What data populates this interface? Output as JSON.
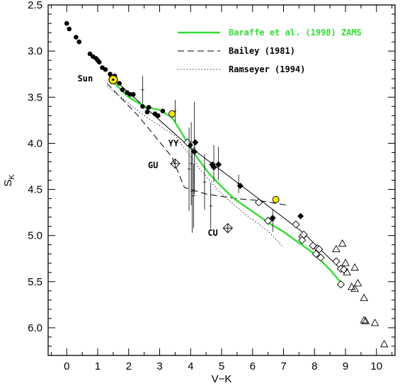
{
  "chart_data": {
    "type": "scatter",
    "xlabel": "V−K",
    "ylabel": "S",
    "ylabel_sub": "K",
    "xlim": [
      -0.6,
      10.6
    ],
    "ylim": [
      6.3,
      2.5
    ],
    "y_inverted": true,
    "x_ticks": [
      0,
      1,
      2,
      3,
      4,
      5,
      6,
      7,
      8,
      9,
      10
    ],
    "x_tick_labels": [
      "0",
      "1",
      "2",
      "3",
      "4",
      "5",
      "6",
      "7",
      "8",
      "9",
      "10"
    ],
    "y_ticks": [
      2.5,
      3.0,
      3.5,
      4.0,
      4.5,
      5.0,
      5.5,
      6.0
    ],
    "y_tick_labels": [
      "2.5",
      "3.0",
      "3.5",
      "4.0",
      "4.5",
      "5.0",
      "5.5",
      "6.0"
    ],
    "legend": {
      "placement": "top-right",
      "entries": [
        {
          "label": "Baraffe et al. (1998) ZAMS",
          "style": "solid",
          "color": "#33dd33"
        },
        {
          "label": "Bailey (1981)",
          "style": "dashed",
          "color": "#000000"
        },
        {
          "label": "Ramseyer (1994)",
          "style": "dotted",
          "color": "#000000"
        }
      ]
    },
    "annotations": [
      {
        "text": "Sun",
        "x": 0.35,
        "y": 3.3
      },
      {
        "text": "YY",
        "x": 3.28,
        "y": 4.0
      },
      {
        "text": "GU",
        "x": 2.62,
        "y": 4.24
      },
      {
        "text": "CU",
        "x": 4.55,
        "y": 4.97
      }
    ],
    "lines": {
      "baraffe": [
        [
          1.45,
          3.32
        ],
        [
          2.0,
          3.5
        ],
        [
          2.5,
          3.6
        ],
        [
          3.0,
          3.64
        ],
        [
          3.4,
          3.72
        ],
        [
          3.7,
          3.88
        ],
        [
          3.9,
          4.0
        ],
        [
          4.2,
          4.15
        ],
        [
          4.6,
          4.33
        ],
        [
          5.0,
          4.47
        ],
        [
          5.4,
          4.6
        ],
        [
          6.0,
          4.74
        ],
        [
          6.6,
          4.88
        ],
        [
          7.0,
          4.96
        ],
        [
          7.5,
          5.08
        ],
        [
          8.0,
          5.2
        ],
        [
          8.5,
          5.37
        ],
        [
          8.9,
          5.53
        ]
      ],
      "bailey": [
        [
          1.3,
          3.35
        ],
        [
          2.3,
          3.7
        ],
        [
          3.4,
          4.15
        ],
        [
          3.8,
          4.48
        ],
        [
          4.5,
          4.55
        ],
        [
          5.5,
          4.6
        ],
        [
          6.2,
          4.62
        ],
        [
          7.1,
          4.67
        ]
      ],
      "ramseyer": [
        [
          1.3,
          3.38
        ],
        [
          2.5,
          3.7
        ],
        [
          3.5,
          3.92
        ],
        [
          4.3,
          4.28
        ],
        [
          5.0,
          4.55
        ],
        [
          5.8,
          4.78
        ],
        [
          6.5,
          4.95
        ],
        [
          7.0,
          5.13
        ]
      ],
      "fit": [
        [
          1.4,
          3.27
        ],
        [
          3.9,
          4.02
        ],
        [
          5.8,
          4.5
        ],
        [
          7.6,
          4.96
        ],
        [
          8.9,
          5.38
        ]
      ]
    },
    "series": [
      {
        "marker": "filled-circle",
        "points": [
          [
            0.0,
            2.7
          ],
          [
            0.08,
            2.76
          ],
          [
            0.3,
            2.85
          ],
          [
            0.4,
            2.9
          ],
          [
            0.75,
            3.03
          ],
          [
            0.85,
            3.06
          ],
          [
            0.95,
            3.08
          ],
          [
            1.05,
            3.12
          ],
          [
            1.0,
            3.1
          ],
          [
            1.15,
            3.18
          ],
          [
            1.25,
            3.2
          ],
          [
            1.4,
            3.25
          ],
          [
            1.45,
            3.28
          ],
          [
            1.55,
            3.27
          ],
          [
            1.7,
            3.35
          ],
          [
            1.8,
            3.42
          ],
          [
            1.95,
            3.45
          ],
          [
            2.05,
            3.47
          ],
          [
            2.15,
            3.47
          ],
          [
            2.45,
            3.6
          ],
          [
            2.6,
            3.66
          ],
          [
            2.65,
            3.61
          ],
          [
            2.85,
            3.68
          ],
          [
            2.95,
            3.7
          ],
          [
            3.1,
            3.65
          ]
        ]
      },
      {
        "marker": "yellow-circle",
        "color": "#f5e600",
        "points": [
          [
            3.4,
            3.68
          ],
          [
            6.75,
            4.61
          ]
        ]
      },
      {
        "marker": "sun-symbol",
        "color": "#f5e600",
        "points": [
          [
            1.5,
            3.31
          ]
        ]
      },
      {
        "marker": "filled-diamond",
        "points": [
          [
            3.98,
            4.02
          ],
          [
            4.12,
            4.09
          ],
          [
            4.15,
            3.99
          ],
          [
            4.7,
            4.23
          ],
          [
            4.75,
            4.26
          ],
          [
            4.9,
            4.23
          ],
          [
            5.6,
            4.46
          ],
          [
            6.65,
            4.81
          ],
          [
            7.55,
            4.79
          ]
        ]
      },
      {
        "marker": "open-diamond",
        "points": [
          [
            3.9,
            3.99
          ],
          [
            6.2,
            4.64
          ],
          [
            6.5,
            4.84
          ],
          [
            7.4,
            4.88
          ],
          [
            7.6,
            5.01
          ],
          [
            7.65,
            4.99
          ],
          [
            7.6,
            5.05
          ],
          [
            7.95,
            5.11
          ],
          [
            8.1,
            5.14
          ],
          [
            8.15,
            5.15
          ],
          [
            8.05,
            5.2
          ],
          [
            8.2,
            5.24
          ],
          [
            8.7,
            5.28
          ],
          [
            8.85,
            5.36
          ],
          [
            8.95,
            5.37
          ],
          [
            8.85,
            5.53
          ]
        ]
      },
      {
        "marker": "open-triangle",
        "points": [
          [
            8.7,
            5.15
          ],
          [
            8.9,
            5.09
          ],
          [
            9.0,
            5.3
          ],
          [
            9.05,
            5.4
          ],
          [
            9.2,
            5.56
          ],
          [
            9.3,
            5.35
          ],
          [
            9.4,
            5.52
          ],
          [
            9.3,
            5.58
          ],
          [
            9.6,
            5.68
          ],
          [
            9.6,
            5.92
          ],
          [
            9.65,
            5.93
          ],
          [
            9.95,
            5.95
          ],
          [
            10.25,
            6.18
          ]
        ]
      },
      {
        "marker": "errorbar-cross",
        "points": [
          [
            2.45,
            3.42,
            0.15,
            0.05
          ],
          [
            3.5,
            3.65,
            0.12,
            0.04
          ],
          [
            3.95,
            4.28,
            0.45,
            0.05
          ],
          [
            4.02,
            4.22,
            0.45,
            0.05
          ],
          [
            4.05,
            4.52,
            0.45,
            0.05
          ],
          [
            4.12,
            4.05,
            0.5,
            0.05
          ],
          [
            4.1,
            4.57,
            0.35,
            0.05
          ],
          [
            4.45,
            4.42,
            0.3,
            0.05
          ],
          [
            4.65,
            4.68,
            0.25,
            0.05
          ],
          [
            4.75,
            4.22,
            0.2,
            0.05
          ],
          [
            4.9,
            4.22,
            0.18,
            0.05
          ],
          [
            5.55,
            4.44,
            0.1,
            0.05
          ],
          [
            6.65,
            4.84,
            0.12,
            0.05
          ]
        ]
      },
      {
        "marker": "special-diamond-cross",
        "points": [
          [
            3.5,
            4.22
          ],
          [
            5.2,
            4.92
          ]
        ]
      }
    ]
  }
}
